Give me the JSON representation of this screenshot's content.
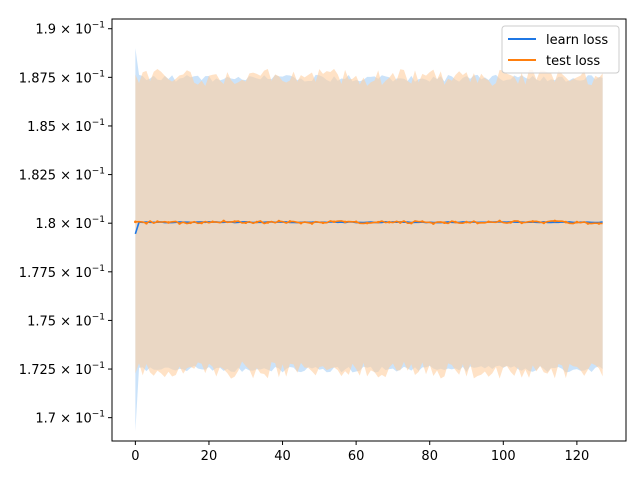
{
  "chart_data": {
    "type": "line",
    "title": "",
    "xlabel": "",
    "ylabel": "",
    "xlim": [
      -6.35,
      133.35
    ],
    "ylim": [
      0.1688,
      0.1905
    ],
    "x_ticks": [
      0,
      20,
      40,
      60,
      80,
      100,
      120
    ],
    "x_tick_labels": [
      "0",
      "20",
      "40",
      "60",
      "80",
      "100",
      "120"
    ],
    "y_ticks": [
      0.17,
      0.1725,
      0.175,
      0.1775,
      0.18,
      0.1825,
      0.185,
      0.1875,
      0.19
    ],
    "y_tick_labels": [
      {
        "mantissa": "1.7",
        "exponent": "−1"
      },
      {
        "mantissa": "1.725",
        "exponent": "−1"
      },
      {
        "mantissa": "1.75",
        "exponent": "−1"
      },
      {
        "mantissa": "1.775",
        "exponent": "−1"
      },
      {
        "mantissa": "1.8",
        "exponent": "−1"
      },
      {
        "mantissa": "1.825",
        "exponent": "−1"
      },
      {
        "mantissa": "1.85",
        "exponent": "−1"
      },
      {
        "mantissa": "1.875",
        "exponent": "−1"
      },
      {
        "mantissa": "1.9",
        "exponent": "−1"
      }
    ],
    "legend_position": "top-right",
    "x_count": 128,
    "series": [
      {
        "name": "learn loss",
        "color": "#1f77e4",
        "band_color": "#a9d1f7",
        "line_start": 0.17945,
        "line_mid": 0.18005,
        "line_end": 0.18005,
        "band_upper_start": 0.189,
        "band_upper_mean": 0.18745,
        "band_lower_start": 0.1693,
        "band_lower_mean": 0.1725
      },
      {
        "name": "test loss",
        "color": "#ff7f0e",
        "band_color": "#ffcfa0",
        "line_mean": 0.18005,
        "line_jitter": 7e-05,
        "band_upper_mean": 0.1875,
        "band_lower_mean": 0.17245,
        "band_jitter": 0.00045
      }
    ]
  }
}
